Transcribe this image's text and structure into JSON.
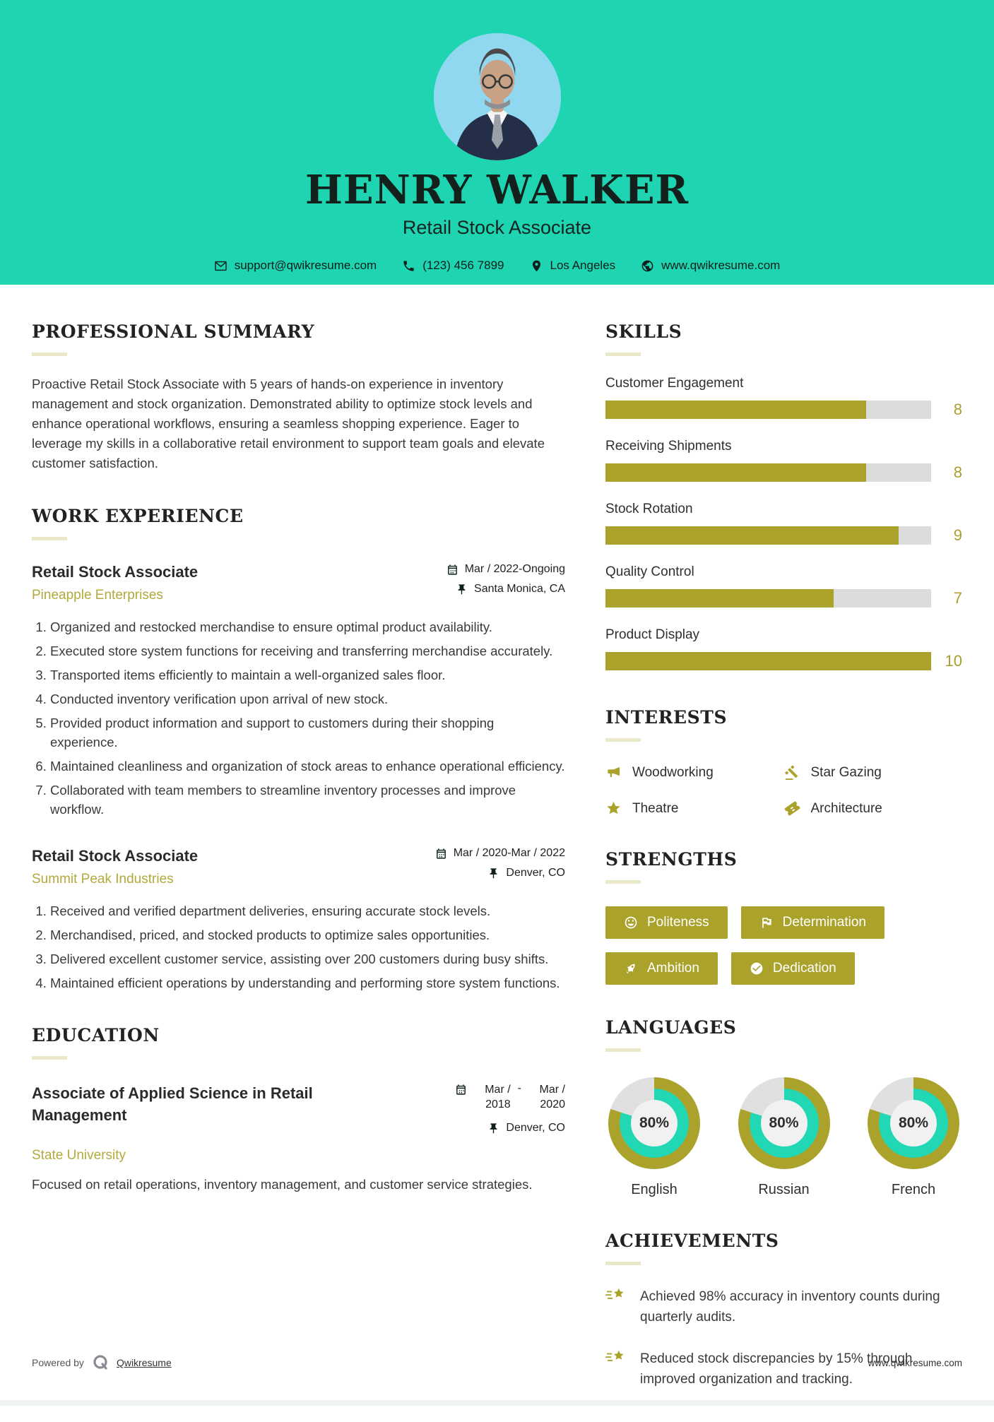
{
  "colors": {
    "teal": "#1ed4b1",
    "olive": "#aaa22b",
    "donut_teal": "#22d7b4",
    "track_gray": "#e0e0e0",
    "photo_bg": "#8fd8ef"
  },
  "header": {
    "name": "HENRY WALKER",
    "title": "Retail Stock Associate",
    "email": "support@qwikresume.com",
    "phone": "(123) 456 7899",
    "location": "Los Angeles",
    "website": "www.qwikresume.com"
  },
  "summary": {
    "heading": "PROFESSIONAL SUMMARY",
    "text": "Proactive Retail Stock Associate with 5 years of hands-on experience in inventory management and stock organization. Demonstrated ability to optimize stock levels and enhance operational workflows, ensuring a seamless shopping experience. Eager to leverage my skills in a collaborative retail environment to support team goals and elevate customer satisfaction."
  },
  "work": {
    "heading": "WORK EXPERIENCE",
    "jobs": [
      {
        "title": "Retail Stock Associate",
        "company": "Pineapple Enterprises",
        "date": "Mar / 2022-Ongoing",
        "location": "Santa Monica, CA",
        "bullets": [
          "Organized and restocked merchandise to ensure optimal product availability.",
          "Executed store system functions for receiving and transferring merchandise accurately.",
          "Transported items efficiently to maintain a well-organized sales floor.",
          "Conducted inventory verification upon arrival of new stock.",
          "Provided product information and support to customers during their shopping experience.",
          "Maintained cleanliness and organization of stock areas to enhance operational efficiency.",
          "Collaborated with team members to streamline inventory processes and improve workflow."
        ]
      },
      {
        "title": "Retail Stock Associate",
        "company": "Summit Peak Industries",
        "date": "Mar / 2020-Mar / 2022",
        "location": "Denver, CO",
        "bullets": [
          "Received and verified department deliveries, ensuring accurate stock levels.",
          "Merchandised, priced, and stocked products to optimize sales opportunities.",
          "Delivered excellent customer service, assisting over 200 customers during busy shifts.",
          "Maintained efficient operations by understanding and performing store system functions."
        ]
      }
    ]
  },
  "education": {
    "heading": "EDUCATION",
    "degree": "Associate of Applied Science in Retail Management",
    "school": "State University",
    "date_start": "Mar / 2018",
    "date_separator": "-",
    "date_end": "Mar / 2020",
    "location": "Denver, CO",
    "description": "Focused on retail operations, inventory management, and customer service strategies."
  },
  "skills": {
    "heading": "SKILLS",
    "max": 10,
    "items": [
      {
        "label": "Customer Engagement",
        "value": 8
      },
      {
        "label": "Receiving Shipments",
        "value": 8
      },
      {
        "label": "Stock Rotation",
        "value": 9
      },
      {
        "label": "Quality Control",
        "value": 7
      },
      {
        "label": "Product Display",
        "value": 10
      }
    ]
  },
  "interests": {
    "heading": "INTERESTS",
    "items": [
      {
        "icon": "megaphone-icon",
        "label": "Woodworking"
      },
      {
        "icon": "gavel-icon",
        "label": "Star Gazing"
      },
      {
        "icon": "star-icon",
        "label": "Theatre"
      },
      {
        "icon": "ticket-icon",
        "label": "Architecture"
      }
    ]
  },
  "strengths": {
    "heading": "STRENGTHS",
    "items": [
      {
        "icon": "smiley-icon",
        "label": "Politeness"
      },
      {
        "icon": "flag-icon",
        "label": "Determination"
      },
      {
        "icon": "rocket-icon",
        "label": "Ambition"
      },
      {
        "icon": "check-circle-icon",
        "label": "Dedication"
      }
    ]
  },
  "languages": {
    "heading": "LANGUAGES",
    "items": [
      {
        "label": "English",
        "percent": 80,
        "percent_label": "80%"
      },
      {
        "label": "Russian",
        "percent": 80,
        "percent_label": "80%"
      },
      {
        "label": "French",
        "percent": 80,
        "percent_label": "80%"
      }
    ]
  },
  "achievements": {
    "heading": "ACHIEVEMENTS",
    "items": [
      "Achieved 98% accuracy in inventory counts during quarterly audits.",
      "Reduced stock discrepancies by 15% through improved organization and tracking."
    ]
  },
  "footer": {
    "powered_by": "Powered by",
    "brand": "Qwikresume",
    "site": "www.qwikresume.com"
  }
}
